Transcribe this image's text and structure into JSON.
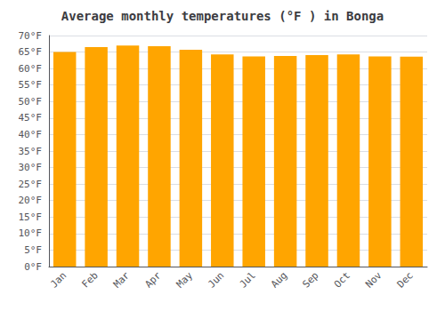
{
  "chart_data": {
    "type": "bar",
    "title": "Average monthly temperatures (°F ) in Bonga",
    "categories": [
      "Jan",
      "Feb",
      "Mar",
      "Apr",
      "May",
      "Jun",
      "Jul",
      "Aug",
      "Sep",
      "Oct",
      "Nov",
      "Dec"
    ],
    "values": [
      65.0,
      66.5,
      67.0,
      66.8,
      65.7,
      64.3,
      63.7,
      63.8,
      64.1,
      64.3,
      63.7,
      63.6
    ],
    "color": "#FFA500",
    "ylim": [
      0,
      70
    ],
    "yticks": [
      {
        "value": 0,
        "label": "0°F"
      },
      {
        "value": 5,
        "label": "5°F"
      },
      {
        "value": 10,
        "label": "10°F"
      },
      {
        "value": 15,
        "label": "15°F"
      },
      {
        "value": 20,
        "label": "20°F"
      },
      {
        "value": 25,
        "label": "25°F"
      },
      {
        "value": 30,
        "label": "30°F"
      },
      {
        "value": 35,
        "label": "35°F"
      },
      {
        "value": 40,
        "label": "40°F"
      },
      {
        "value": 45,
        "label": "45°F"
      },
      {
        "value": 50,
        "label": "50°F"
      },
      {
        "value": 55,
        "label": "55°F"
      },
      {
        "value": 60,
        "label": "60°F"
      },
      {
        "value": 65,
        "label": "65°F"
      },
      {
        "value": 70,
        "label": "70°F"
      }
    ],
    "grid": true
  }
}
